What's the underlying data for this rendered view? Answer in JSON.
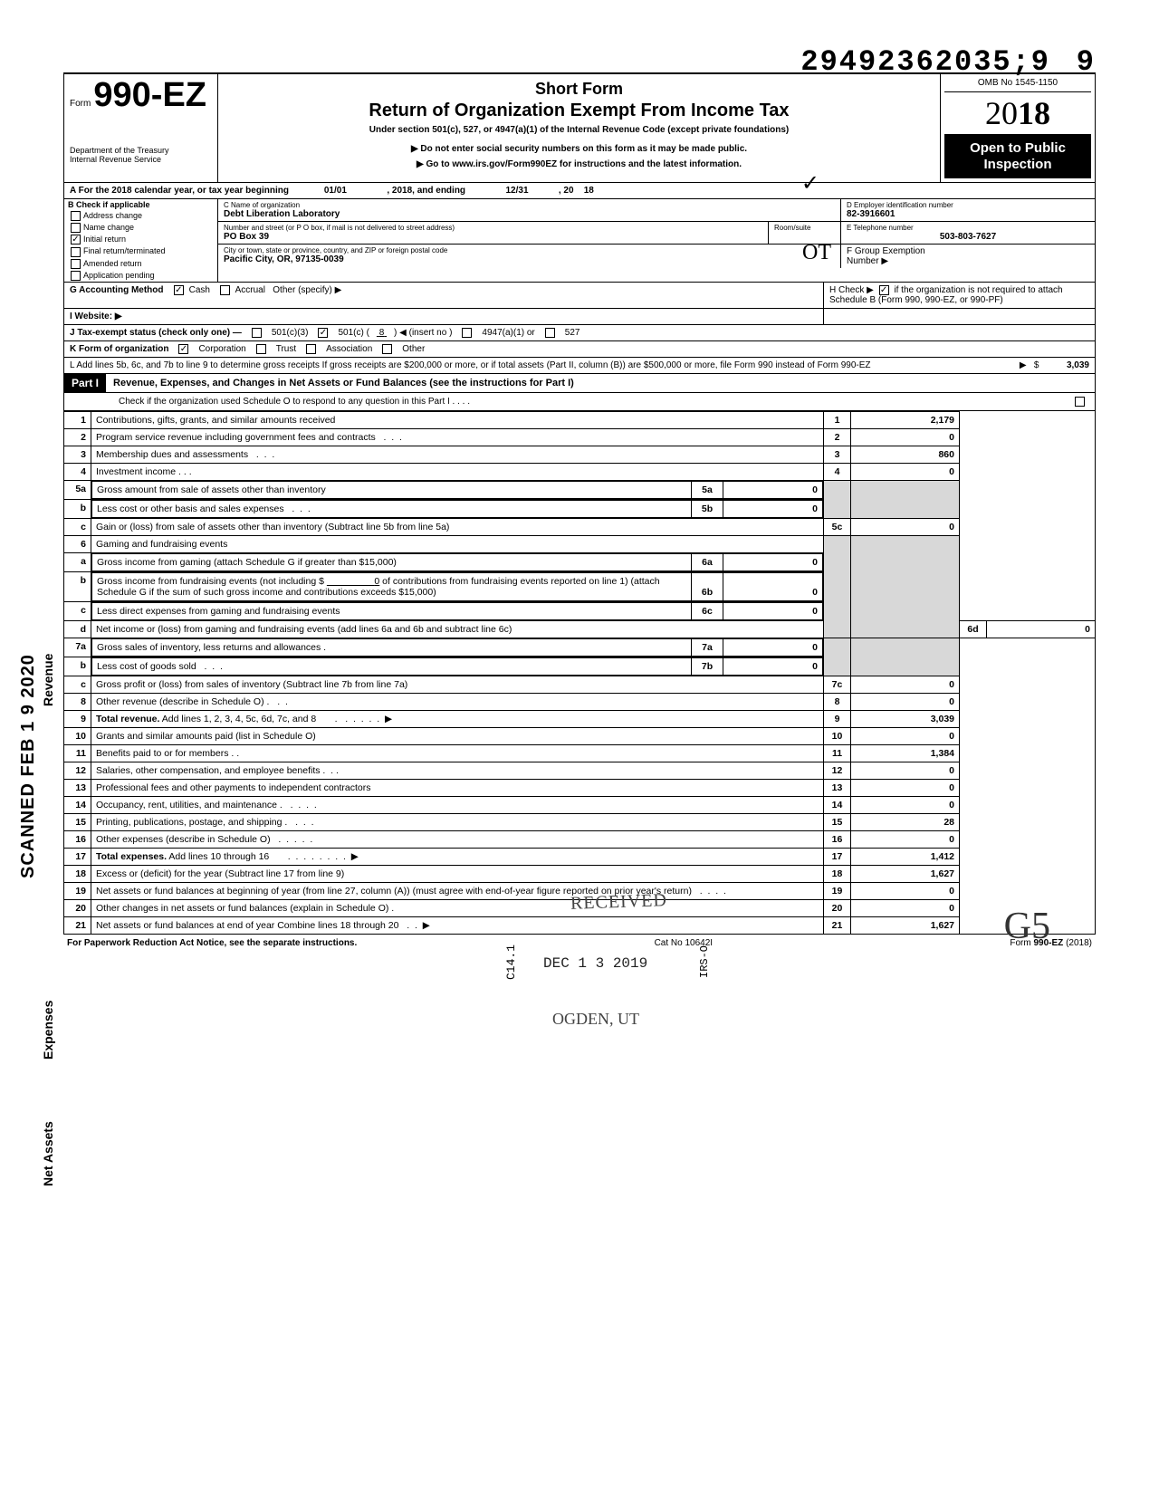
{
  "doc_id": "29492362035;9",
  "doc_id_trail": "9",
  "header": {
    "form_label": "Form",
    "form_number": "990-EZ",
    "dept1": "Department of the Treasury",
    "dept2": "Internal Revenue Service",
    "short_form": "Short Form",
    "title": "Return of Organization Exempt From Income Tax",
    "subtitle": "Under section 501(c), 527, or 4947(a)(1) of the Internal Revenue Code (except private foundations)",
    "instr1": "Do not enter social security numbers on this form as it may be made public.",
    "instr2": "Go to www.irs.gov/Form990EZ for instructions and the latest information.",
    "omb": "OMB No 1545-1150",
    "year": "2018",
    "open_public": "Open to Public Inspection"
  },
  "rowA": {
    "text1": "A  For the 2018 calendar year, or tax year beginning",
    "begin": "01/01",
    "text2": ", 2018, and ending",
    "end": "12/31",
    "text3": ", 20",
    "yr": "18"
  },
  "checkB": {
    "label": "B  Check if applicable",
    "items": [
      "Address change",
      "Name change",
      "Initial return",
      "Final return/terminated",
      "Amended return",
      "Application pending"
    ],
    "checked_idx": 2
  },
  "org": {
    "c_label": "C  Name of organization",
    "name": "Debt Liberation Laboratory",
    "addr_label": "Number and street (or P O  box, if mail is not delivered to street address)",
    "addr": "PO Box 39",
    "room_label": "Room/suite",
    "city_label": "City or town, state or province, country, and ZIP or foreign postal code",
    "city": "Pacific City, OR, 97135-0039",
    "d_label": "D Employer identification number",
    "ein": "82-3916601",
    "e_label": "E  Telephone number",
    "phone": "503-803-7627",
    "f_label": "F  Group Exemption",
    "f_label2": "Number ▶"
  },
  "rowG": {
    "label": "G  Accounting Method",
    "opts": [
      "Cash",
      "Accrual",
      "Other (specify) ▶"
    ],
    "checked": 0
  },
  "rowH": {
    "text1": "H  Check  ▶",
    "text2": "if the organization is not required to attach Schedule B (Form 990, 990-EZ, or 990-PF)",
    "checked": true
  },
  "rowI": {
    "label": "I   Website: ▶",
    "val": ""
  },
  "rowJ": {
    "label": "J  Tax-exempt status (check only one) —",
    "o1": "501(c)(3)",
    "o2": "501(c) (",
    "o2v": "8",
    "o2t": ") ◀ (insert no )",
    "o3": "4947(a)(1) or",
    "o4": "527",
    "checked": 1
  },
  "rowK": {
    "label": "K  Form of organization",
    "opts": [
      "Corporation",
      "Trust",
      "Association",
      "Other"
    ],
    "checked": 0
  },
  "rowL": {
    "text": "L  Add lines 5b, 6c, and 7b to line 9 to determine gross receipts  If gross receipts are $200,000 or more, or if total assets (Part II, column (B)) are $500,000 or more, file Form 990 instead of Form 990-EZ",
    "amt": "3,039"
  },
  "part1": {
    "label": "Part I",
    "title": "Revenue, Expenses, and Changes in Net Assets or Fund Balances (see the instructions for Part I)",
    "check": "Check if the organization used Schedule O to respond to any question in this Part I   .   .   .   ."
  },
  "sections": {
    "revenue": "Revenue",
    "expenses": "Expenses",
    "netassets": "Net Assets",
    "scanned": "SCANNED FEB 1 9 2020"
  },
  "lines": {
    "l1": {
      "n": "1",
      "d": "Contributions, gifts, grants, and similar amounts received",
      "b": "1",
      "a": "2,179"
    },
    "l2": {
      "n": "2",
      "d": "Program service revenue including government fees and contracts",
      "b": "2",
      "a": "0"
    },
    "l3": {
      "n": "3",
      "d": "Membership dues and assessments",
      "b": "3",
      "a": "860"
    },
    "l4": {
      "n": "4",
      "d": "Investment income    .    .    .",
      "b": "4",
      "a": "0"
    },
    "l5a": {
      "n": "5a",
      "d": "Gross amount from sale of assets other than inventory",
      "ib": "5a",
      "ia": "0"
    },
    "l5b": {
      "n": "b",
      "d": "Less  cost or other basis and sales expenses",
      "ib": "5b",
      "ia": "0"
    },
    "l5c": {
      "n": "c",
      "d": "Gain or (loss) from sale of assets other than inventory (Subtract line 5b from line 5a)",
      "b": "5c",
      "a": "0"
    },
    "l6": {
      "n": "6",
      "d": "Gaming and fundraising events"
    },
    "l6a": {
      "n": "a",
      "d": "Gross income from gaming (attach Schedule G if greater than $15,000)",
      "ib": "6a",
      "ia": "0"
    },
    "l6b": {
      "n": "b",
      "d": "Gross income from fundraising events (not including  $",
      "d2": "of contributions from fundraising events reported on line 1) (attach Schedule G if the sum of such gross income and contributions exceeds $15,000)",
      "ib": "6b",
      "ia": "0",
      "iv": "0"
    },
    "l6c": {
      "n": "c",
      "d": "Less  direct expenses from gaming and fundraising events",
      "ib": "6c",
      "ia": "0"
    },
    "l6d": {
      "n": "d",
      "d": "Net income or (loss) from gaming and fundraising events (add lines 6a and 6b and subtract line 6c)",
      "b": "6d",
      "a": "0"
    },
    "l7a": {
      "n": "7a",
      "d": "Gross sales of inventory, less returns and allowances  .",
      "ib": "7a",
      "ia": "0"
    },
    "l7b": {
      "n": "b",
      "d": "Less  cost of goods sold",
      "ib": "7b",
      "ia": "0"
    },
    "l7c": {
      "n": "c",
      "d": "Gross profit or (loss) from sales of inventory (Subtract line 7b from line 7a)",
      "b": "7c",
      "a": "0"
    },
    "l8": {
      "n": "8",
      "d": "Other revenue (describe in Schedule O) .",
      "b": "8",
      "a": "0"
    },
    "l9": {
      "n": "9",
      "d": "Total revenue. Add lines 1, 2, 3, 4, 5c, 6d, 7c, and 8",
      "b": "9",
      "a": "3,039"
    },
    "l10": {
      "n": "10",
      "d": "Grants and similar amounts paid (list in Schedule O)",
      "b": "10",
      "a": "0"
    },
    "l11": {
      "n": "11",
      "d": "Benefits paid to or for members  .   .",
      "b": "11",
      "a": "1,384"
    },
    "l12": {
      "n": "12",
      "d": "Salaries, other compensation, and employee benefits  .",
      "b": "12",
      "a": "0"
    },
    "l13": {
      "n": "13",
      "d": "Professional fees and other payments to independent contractors",
      "b": "13",
      "a": "0"
    },
    "l14": {
      "n": "14",
      "d": "Occupancy, rent, utilities, and maintenance    .",
      "b": "14",
      "a": "0"
    },
    "l15": {
      "n": "15",
      "d": "Printing, publications, postage, and shipping .",
      "b": "15",
      "a": "28"
    },
    "l16": {
      "n": "16",
      "d": "Other expenses (describe in Schedule O)",
      "b": "16",
      "a": "0"
    },
    "l17": {
      "n": "17",
      "d": "Total expenses. Add lines 10 through 16",
      "b": "17",
      "a": "1,412"
    },
    "l18": {
      "n": "18",
      "d": "Excess or (deficit) for the year (Subtract line 17 from line 9)",
      "b": "18",
      "a": "1,627"
    },
    "l19": {
      "n": "19",
      "d": "Net assets or fund balances at beginning of year (from line 27, column (A)) (must agree with end-of-year figure reported on prior year's return)",
      "b": "19",
      "a": "0"
    },
    "l20": {
      "n": "20",
      "d": "Other changes in net assets or fund balances (explain in Schedule O) .",
      "b": "20",
      "a": "0"
    },
    "l21": {
      "n": "21",
      "d": "Net assets or fund balances at end of year  Combine lines 18 through 20",
      "b": "21",
      "a": "1,627"
    }
  },
  "stamps": {
    "received": "RECEIVED",
    "date": "DEC 1 3 2019",
    "ogden": "OGDEN, UT",
    "c14": "C14.1",
    "irs": "IRS-O"
  },
  "handwrite": {
    "ot": "OT"
  },
  "footer": {
    "left": "For Paperwork Reduction Act Notice, see the separate instructions.",
    "mid": "Cat  No  10642I",
    "right": "Form 990-EZ (2018)"
  },
  "signature": "G5"
}
